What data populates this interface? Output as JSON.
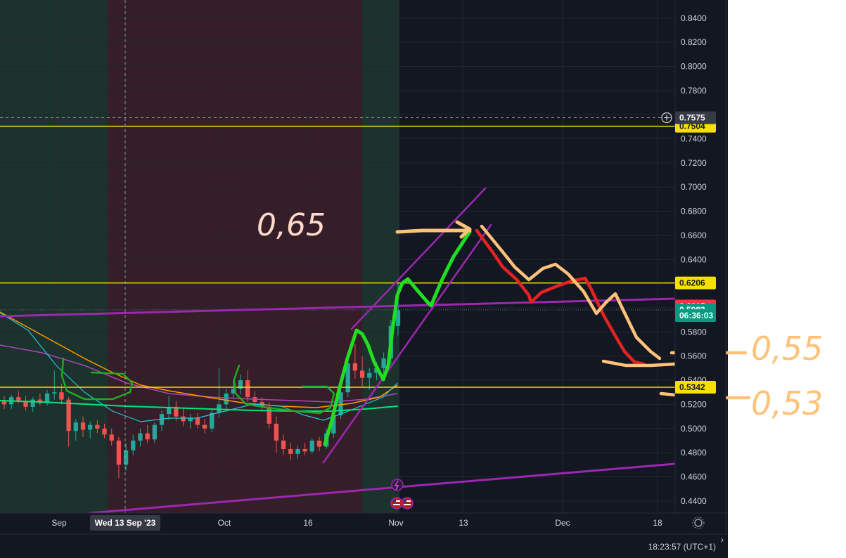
{
  "chart_data": {
    "type": "candlestick",
    "x_ticks": [
      "Sep",
      "Oct",
      "16",
      "Nov",
      "13",
      "Dec",
      "18"
    ],
    "y_ticks": [
      0.44,
      0.46,
      0.48,
      0.5,
      0.52,
      0.54,
      0.56,
      0.58,
      0.6,
      0.62,
      0.64,
      0.66,
      0.68,
      0.7,
      0.72,
      0.74,
      0.76,
      0.78,
      0.8,
      0.82,
      0.84
    ],
    "ylim": [
      0.43,
      0.855
    ],
    "crosshair": {
      "date_label": "Wed 13 Sep '23",
      "price_label": "0.7575",
      "price": 0.7575
    },
    "price_labels": [
      {
        "text": "0.7504",
        "value": 0.7504,
        "bg": "#f5e000",
        "fg": "#131722"
      },
      {
        "text": "0.6206",
        "value": 0.6206,
        "bg": "#f5e000",
        "fg": "#131722"
      },
      {
        "text": "0.6015",
        "value": 0.6015,
        "bg": "#f23645",
        "fg": "#ffffff"
      },
      {
        "text": "0.5983",
        "value": 0.5983,
        "bg": "#089981",
        "fg": "#ffffff"
      },
      {
        "text": "06:36:03",
        "value": 0.5935,
        "bg": "#089981",
        "fg": "#ffffff"
      },
      {
        "text": "0.5342",
        "value": 0.5342,
        "bg": "#f5e000",
        "fg": "#131722"
      }
    ],
    "horizontal_lines": [
      0.7504,
      0.6206,
      0.5342
    ],
    "candles": [
      [
        0.523,
        0.527,
        0.516,
        0.52
      ],
      [
        0.52,
        0.528,
        0.516,
        0.526
      ],
      [
        0.526,
        0.531,
        0.521,
        0.523
      ],
      [
        0.523,
        0.527,
        0.515,
        0.518
      ],
      [
        0.518,
        0.526,
        0.514,
        0.524
      ],
      [
        0.524,
        0.529,
        0.519,
        0.521
      ],
      [
        0.521,
        0.532,
        0.519,
        0.529
      ],
      [
        0.529,
        0.548,
        0.524,
        0.53
      ],
      [
        0.53,
        0.537,
        0.52,
        0.524
      ],
      [
        0.524,
        0.526,
        0.485,
        0.498
      ],
      [
        0.498,
        0.508,
        0.49,
        0.505
      ],
      [
        0.505,
        0.51,
        0.493,
        0.499
      ],
      [
        0.499,
        0.506,
        0.492,
        0.503
      ],
      [
        0.503,
        0.507,
        0.496,
        0.5
      ],
      [
        0.5,
        0.504,
        0.492,
        0.495
      ],
      [
        0.495,
        0.5,
        0.486,
        0.49
      ],
      [
        0.49,
        0.493,
        0.459,
        0.47
      ],
      [
        0.47,
        0.488,
        0.465,
        0.482
      ],
      [
        0.482,
        0.495,
        0.478,
        0.49
      ],
      [
        0.49,
        0.5,
        0.485,
        0.496
      ],
      [
        0.496,
        0.503,
        0.488,
        0.491
      ],
      [
        0.491,
        0.505,
        0.488,
        0.503
      ],
      [
        0.503,
        0.515,
        0.498,
        0.512
      ],
      [
        0.512,
        0.527,
        0.507,
        0.518
      ],
      [
        0.518,
        0.523,
        0.506,
        0.51
      ],
      [
        0.51,
        0.517,
        0.502,
        0.506
      ],
      [
        0.506,
        0.512,
        0.5,
        0.509
      ],
      [
        0.509,
        0.513,
        0.5,
        0.503
      ],
      [
        0.503,
        0.508,
        0.496,
        0.5
      ],
      [
        0.5,
        0.516,
        0.497,
        0.513
      ],
      [
        0.513,
        0.55,
        0.509,
        0.52
      ],
      [
        0.52,
        0.533,
        0.514,
        0.529
      ],
      [
        0.529,
        0.54,
        0.525,
        0.533
      ],
      [
        0.533,
        0.545,
        0.528,
        0.54
      ],
      [
        0.54,
        0.548,
        0.522,
        0.526
      ],
      [
        0.526,
        0.531,
        0.518,
        0.522
      ],
      [
        0.522,
        0.526,
        0.514,
        0.518
      ],
      [
        0.518,
        0.522,
        0.5,
        0.504
      ],
      [
        0.504,
        0.51,
        0.48,
        0.49
      ],
      [
        0.49,
        0.495,
        0.478,
        0.483
      ],
      [
        0.483,
        0.488,
        0.474,
        0.479
      ],
      [
        0.479,
        0.486,
        0.475,
        0.483
      ],
      [
        0.483,
        0.488,
        0.478,
        0.481
      ],
      [
        0.481,
        0.492,
        0.479,
        0.49
      ],
      [
        0.49,
        0.493,
        0.481,
        0.485
      ],
      [
        0.485,
        0.5,
        0.483,
        0.496
      ],
      [
        0.496,
        0.515,
        0.492,
        0.511
      ],
      [
        0.511,
        0.538,
        0.508,
        0.53
      ],
      [
        0.53,
        0.56,
        0.526,
        0.554
      ],
      [
        0.554,
        0.57,
        0.541,
        0.548
      ],
      [
        0.548,
        0.56,
        0.535,
        0.542
      ],
      [
        0.542,
        0.55,
        0.532,
        0.546
      ],
      [
        0.546,
        0.555,
        0.54,
        0.55
      ],
      [
        0.55,
        0.563,
        0.545,
        0.558
      ],
      [
        0.558,
        0.59,
        0.553,
        0.585
      ],
      [
        0.585,
        0.621,
        0.577,
        0.598
      ]
    ],
    "hand_labels": [
      "0,65",
      "0,55",
      "0,53"
    ]
  },
  "bottom_bar": {
    "clock": "18:23:57 (UTC+1)"
  },
  "colors": {
    "bg": "#131722",
    "up": "#26a69a",
    "down": "#ef5350",
    "yellow": "#f5e000",
    "purple": "#9c27b0",
    "hand_green": "#22dd22",
    "hand_red": "#e52222",
    "hand_orange": "#ffc27a"
  },
  "icons": {
    "crosshair_plus": "plus-circle-icon",
    "settings": "gear-icon",
    "lightning": "lightning-icon",
    "flag": "us-flag-icon"
  }
}
